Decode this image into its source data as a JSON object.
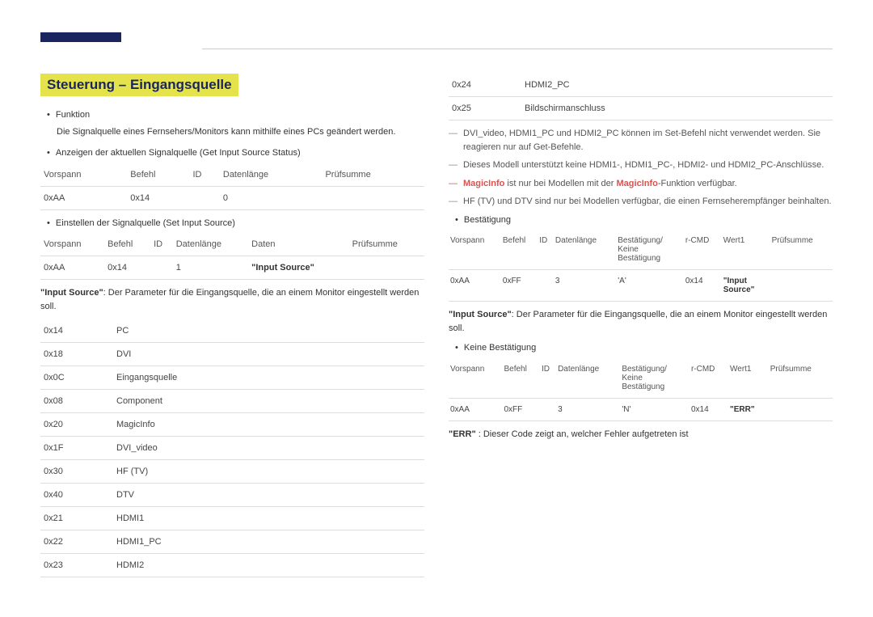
{
  "title": "Steuerung – Eingangsquelle",
  "left": {
    "funktion_label": "Funktion",
    "funktion_desc": "Die Signalquelle eines Fernsehers/Monitors kann mithilfe eines PCs geändert werden.",
    "anzeigen": "Anzeigen der aktuellen Signalquelle (Get Input Source Status)",
    "t1_headers": [
      "Vorspann",
      "Befehl",
      "ID",
      "Datenlänge",
      "Prüfsumme"
    ],
    "t1_row": [
      "0xAA",
      "0x14",
      "",
      "0",
      ""
    ],
    "einstellen": "Einstellen der Signalquelle (Set Input Source)",
    "t2_headers": [
      "Vorspann",
      "Befehl",
      "ID",
      "Datenlänge",
      "Daten",
      "Prüfsumme"
    ],
    "t2_row": [
      "0xAA",
      "0x14",
      "",
      "1",
      "\"Input Source\"",
      ""
    ],
    "param_note": "\"Input Source\": Der Parameter für die Eingangsquelle, die an einem Monitor eingestellt werden soll.",
    "sources": [
      [
        "0x14",
        "PC"
      ],
      [
        "0x18",
        "DVI"
      ],
      [
        "0x0C",
        "Eingangsquelle"
      ],
      [
        "0x08",
        "Component"
      ],
      [
        "0x20",
        "MagicInfo"
      ],
      [
        "0x1F",
        "DVI_video"
      ],
      [
        "0x30",
        "HF (TV)"
      ],
      [
        "0x40",
        "DTV"
      ],
      [
        "0x21",
        "HDMI1"
      ],
      [
        "0x22",
        "HDMI1_PC"
      ],
      [
        "0x23",
        "HDMI2"
      ]
    ]
  },
  "right": {
    "sources_cont": [
      [
        "0x24",
        "HDMI2_PC"
      ],
      [
        "0x25",
        "Bildschirmanschluss"
      ]
    ],
    "note1": "DVI_video, HDMI1_PC und HDMI2_PC können im Set-Befehl nicht verwendet werden. Sie reagieren nur auf Get-Befehle.",
    "note2": "Dieses Modell unterstützt keine HDMI1-, HDMI1_PC-, HDMI2- und HDMI2_PC-Anschlüsse.",
    "note3_pre": "MagicInfo",
    "note3_mid": " ist nur bei Modellen mit der ",
    "note3_red2": "MagicInfo",
    "note3_post": "-Funktion verfügbar.",
    "note4": "HF (TV) und DTV sind nur bei Modellen verfügbar, die einen Fernseherempfänger beinhalten.",
    "bestaetigung": "Bestätigung",
    "ack_headers": [
      "Vorspann",
      "Befehl",
      "ID",
      "Datenlänge",
      "Bestätigung/Keine Bestätigung",
      "r-CMD",
      "Wert1",
      "Prüfsumme"
    ],
    "ack_row": [
      "0xAA",
      "0xFF",
      "",
      "3",
      "'A'",
      "0x14",
      "\"Input Source\"",
      ""
    ],
    "param_note2": "\"Input Source\": Der Parameter für die Eingangsquelle, die an einem Monitor eingestellt werden soll.",
    "nak_label": "Keine Bestätigung",
    "nak_row": [
      "0xAA",
      "0xFF",
      "",
      "3",
      "'N'",
      "0x14",
      "\"ERR\"",
      ""
    ],
    "err_note": "\"ERR\" : Dieser Code zeigt an, welcher Fehler aufgetreten ist"
  }
}
